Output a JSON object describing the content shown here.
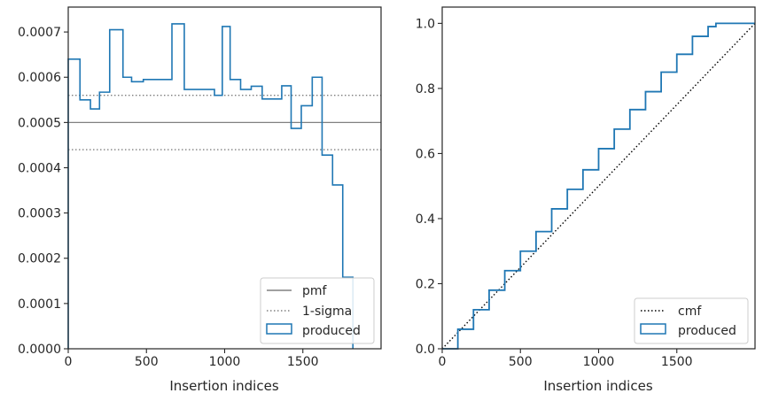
{
  "chart_data": [
    {
      "type": "histogram-step",
      "xlabel": "Insertion indices",
      "ylabel": "",
      "xlim": [
        0,
        2000
      ],
      "ylim": [
        0,
        0.000755
      ],
      "x_ticks": [
        0,
        500,
        1000,
        1500
      ],
      "y_ticks": [
        0.0,
        0.0001,
        0.0002,
        0.0003,
        0.0004,
        0.0005,
        0.0006,
        0.0007
      ],
      "y_tick_labels": [
        "0.0000",
        "0.0001",
        "0.0002",
        "0.0003",
        "0.0004",
        "0.0005",
        "0.0006",
        "0.0007"
      ],
      "x_tick_labels": [
        "0",
        "500",
        "1000",
        "1500"
      ],
      "reference_lines": [
        {
          "name": "pmf",
          "y": 0.0005,
          "style": "solid",
          "color": "#808080"
        },
        {
          "name": "1-sigma",
          "y": 0.00056,
          "style": "dotted",
          "color": "#808080"
        },
        {
          "name": "1-sigma",
          "y": 0.00044,
          "style": "dotted",
          "color": "#808080"
        }
      ],
      "histogram": {
        "name": "produced",
        "color": "#1f77b4",
        "bin_edges": [
          0,
          75,
          142,
          200,
          265,
          350,
          405,
          480,
          600,
          663,
          742,
          870,
          935,
          985,
          1035,
          1102,
          1170,
          1240,
          1300,
          1365,
          1425,
          1490,
          1560,
          1623,
          1690,
          1755,
          1820
        ],
        "values": [
          0.00064,
          0.00055,
          0.00053,
          0.000567,
          0.000705,
          0.0006,
          0.00059,
          0.000595,
          0.000595,
          0.000718,
          0.000573,
          0.000573,
          0.00056,
          0.000712,
          0.000595,
          0.000573,
          0.00058,
          0.000552,
          0.000552,
          0.000581,
          0.000487,
          0.000537,
          0.0006,
          0.000428,
          0.000362,
          0.000158
        ]
      },
      "legend": {
        "position": "lower right",
        "entries": [
          "pmf",
          "1-sigma",
          "produced"
        ]
      }
    },
    {
      "type": "line",
      "xlabel": "Insertion indices",
      "ylabel": "",
      "xlim": [
        0,
        2000
      ],
      "ylim": [
        0,
        1.05
      ],
      "x_ticks": [
        0,
        500,
        1000,
        1500
      ],
      "x_tick_labels": [
        "0",
        "500",
        "1000",
        "1500"
      ],
      "y_ticks": [
        0.0,
        0.2,
        0.4,
        0.6,
        0.8,
        1.0
      ],
      "y_tick_labels": [
        "0.0",
        "0.2",
        "0.4",
        "0.6",
        "0.8",
        "1.0"
      ],
      "series": [
        {
          "name": "cmf",
          "style": "dotted",
          "color": "#000000",
          "x": [
            0,
            2000
          ],
          "y": [
            0.0,
            1.0
          ]
        },
        {
          "name": "produced",
          "style": "step",
          "color": "#1f77b4",
          "x": [
            0,
            100,
            200,
            300,
            400,
            500,
            600,
            700,
            800,
            900,
            1000,
            1100,
            1200,
            1300,
            1400,
            1500,
            1600,
            1700,
            1750,
            1800,
            1900,
            2000
          ],
          "y": [
            0.0,
            0.06,
            0.12,
            0.18,
            0.24,
            0.3,
            0.36,
            0.43,
            0.49,
            0.55,
            0.615,
            0.675,
            0.735,
            0.79,
            0.85,
            0.905,
            0.96,
            0.99,
            1.0,
            1.0,
            1.0,
            1.0
          ]
        }
      ],
      "legend": {
        "position": "lower right",
        "entries": [
          "cmf",
          "produced"
        ]
      }
    }
  ]
}
